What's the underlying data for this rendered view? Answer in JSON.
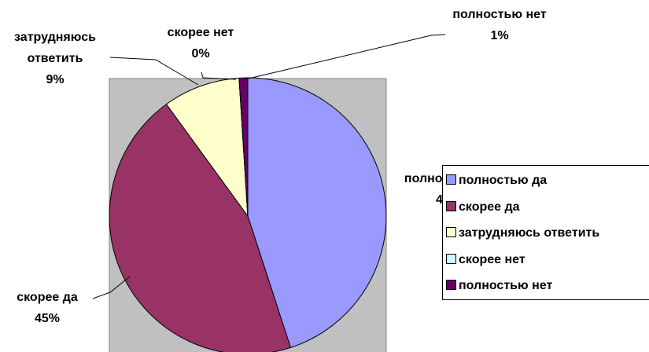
{
  "chart_data": {
    "type": "pie",
    "categories": [
      "полностью да",
      "скорее да",
      "затрудняюсь ответить",
      "скорее нет",
      "полностью нет"
    ],
    "values": [
      45,
      45,
      9,
      0,
      1
    ],
    "value_labels": [
      "45%",
      "45%",
      "9%",
      "0%",
      "1%"
    ],
    "colors": [
      "#9999ff",
      "#993366",
      "#ffffcc",
      "#ccffff",
      "#660066"
    ],
    "legend": "right"
  }
}
